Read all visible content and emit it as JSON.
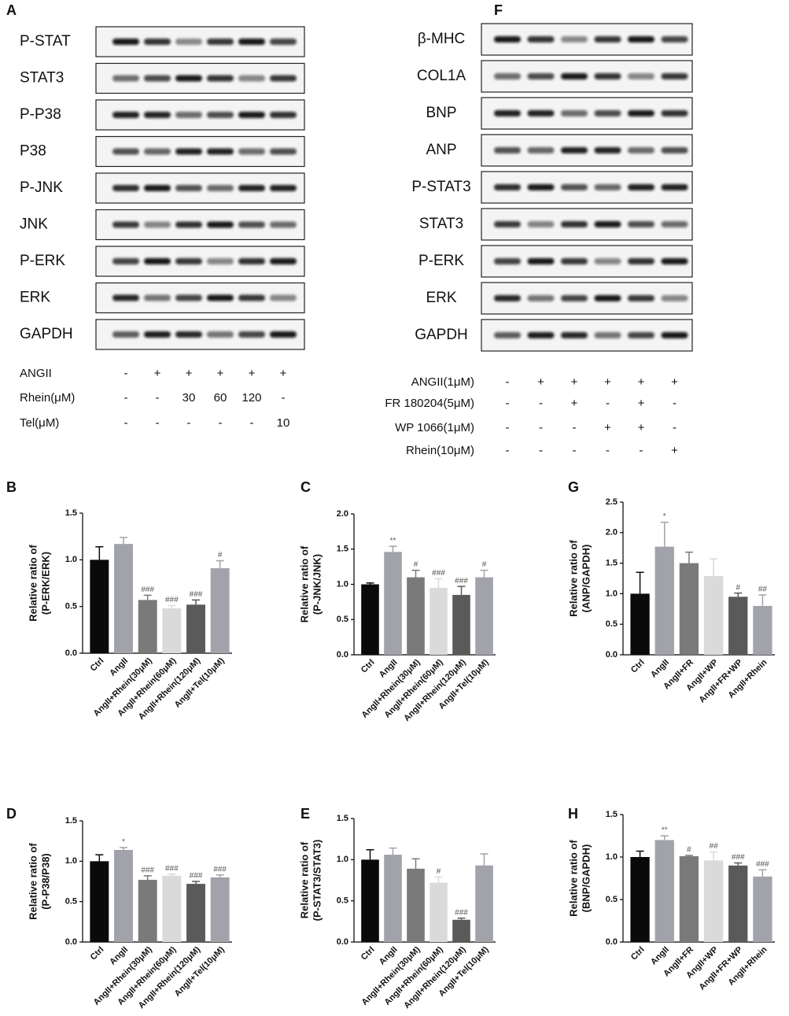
{
  "blots": [
    {
      "panel": "A",
      "rows": [
        "P-STAT",
        "STAT3",
        "P-P38",
        "P38",
        "P-JNK",
        "JNK",
        "P-ERK",
        "ERK",
        "GAPDH"
      ],
      "conditions": [
        {
          "label": "ANGII",
          "marks": [
            "-",
            "+",
            "+",
            "+",
            "+",
            "+"
          ]
        },
        {
          "label": "Rhein(μM)",
          "marks": [
            "-",
            "-",
            "30",
            "60",
            "120",
            "-"
          ]
        },
        {
          "label": "Tel(μM)",
          "marks": [
            "-",
            "-",
            "-",
            "-",
            "-",
            "10"
          ]
        }
      ]
    },
    {
      "panel": "F",
      "rows": [
        "β-MHC",
        "COL1A",
        "BNP",
        "ANP",
        "P-STAT3",
        "STAT3",
        "P-ERK",
        "ERK",
        "GAPDH"
      ],
      "conditions": [
        {
          "label": "ANGII(1μM)",
          "marks": [
            "-",
            "+",
            "+",
            "+",
            "+",
            "+"
          ]
        },
        {
          "label": "FR 180204(5μM)",
          "marks": [
            "-",
            "-",
            "+",
            "-",
            "+",
            "-"
          ]
        },
        {
          "label": "WP 1066(1μM)",
          "marks": [
            "-",
            "-",
            "-",
            "+",
            "+",
            "-"
          ]
        },
        {
          "label": "Rhein(10μM)",
          "marks": [
            "-",
            "-",
            "-",
            "-",
            "-",
            "+"
          ]
        }
      ]
    }
  ],
  "chart_data": [
    {
      "type": "bar",
      "panel": "B",
      "ylabel": [
        "Relative ratio of",
        "(P-ERK/ERK)"
      ],
      "categories": [
        "Ctrl",
        "AngII",
        "AngII+Rhein(30μM)",
        "AngII+Rhein(60μM)",
        "AngII+Rhein(120μM)",
        "AngII+Tel(10μM)"
      ],
      "values": [
        1.0,
        1.17,
        0.57,
        0.48,
        0.52,
        0.91
      ],
      "errors": [
        0.14,
        0.07,
        0.05,
        0.03,
        0.05,
        0.08
      ],
      "annotations": [
        null,
        null,
        "###",
        "###",
        "###",
        "#"
      ],
      "colors": [
        "#0a0a0a",
        "#a2a2aa",
        "#7a7a7a",
        "#dadada",
        "#5a5a5a",
        "#a2a2aa"
      ],
      "ylim": [
        0,
        1.5
      ],
      "yticks": [
        {
          "value": 0,
          "label": "0.0"
        },
        {
          "value": 0.5,
          "label": "0.5"
        },
        {
          "value": 1,
          "label": "1.0"
        },
        {
          "value": 1.5,
          "label": "1.5"
        }
      ]
    },
    {
      "type": "bar",
      "panel": "C",
      "ylabel": [
        "Relative ratio of",
        "(P-JNK/JNK)"
      ],
      "categories": [
        "Ctrl",
        "AngII",
        "AngII+Rhein(30μM)",
        "AngII+Rhein(60μM)",
        "AngII+Rhein(120μM)",
        "AngII+Tel(10μM)"
      ],
      "values": [
        1.0,
        1.46,
        1.1,
        0.95,
        0.85,
        1.1
      ],
      "errors": [
        0.02,
        0.08,
        0.1,
        0.13,
        0.12,
        0.1
      ],
      "annotations": [
        null,
        "**",
        "#",
        "###",
        "###",
        "#"
      ],
      "colors": [
        "#0a0a0a",
        "#a2a2aa",
        "#7a7a7a",
        "#dadada",
        "#5a5a5a",
        "#a2a2aa"
      ],
      "ylim": [
        0,
        2
      ],
      "yticks": [
        {
          "value": 0,
          "label": "0.0"
        },
        {
          "value": 0.5,
          "label": "0.5"
        },
        {
          "value": 1,
          "label": "1.0"
        },
        {
          "value": 1.5,
          "label": "1.5"
        },
        {
          "value": 2,
          "label": "2.0"
        }
      ]
    },
    {
      "type": "bar",
      "panel": "G",
      "ylabel": [
        "Relative ratio of",
        "(ANP/GAPDH)"
      ],
      "categories": [
        "Ctrl",
        "AngII",
        "AngII+FR",
        "AngII+WP",
        "AngII+FR+WP",
        "AngII+Rhein"
      ],
      "values": [
        1.0,
        1.77,
        1.5,
        1.29,
        0.95,
        0.8
      ],
      "errors": [
        0.35,
        0.4,
        0.18,
        0.28,
        0.06,
        0.18
      ],
      "annotations": [
        null,
        "*",
        null,
        null,
        "#",
        "##"
      ],
      "colors": [
        "#0a0a0a",
        "#a2a2aa",
        "#7a7a7a",
        "#dadada",
        "#5a5a5a",
        "#a2a2aa"
      ],
      "ylim": [
        0,
        2.5
      ],
      "yticks": [
        {
          "value": 0,
          "label": "0.0"
        },
        {
          "value": 0.5,
          "label": "0.5"
        },
        {
          "value": 1,
          "label": "1.0"
        },
        {
          "value": 1.5,
          "label": "1.5"
        },
        {
          "value": 2,
          "label": "2.0"
        },
        {
          "value": 2.5,
          "label": "2.5"
        }
      ]
    },
    {
      "type": "bar",
      "panel": "D",
      "ylabel": [
        "Relative ratio of",
        "(P-P38/P38)"
      ],
      "categories": [
        "Ctrl",
        "AngII",
        "AngII+Rhein(30μM)",
        "AngII+Rhein(60μM)",
        "AngII+Rhein(120μM)",
        "AngII+Tel(10μM)"
      ],
      "values": [
        1.0,
        1.14,
        0.77,
        0.82,
        0.72,
        0.8
      ],
      "errors": [
        0.08,
        0.03,
        0.05,
        0.02,
        0.03,
        0.03
      ],
      "annotations": [
        null,
        "*",
        "###",
        "###",
        "###",
        "###"
      ],
      "colors": [
        "#0a0a0a",
        "#a2a2aa",
        "#7a7a7a",
        "#dadada",
        "#5a5a5a",
        "#a2a2aa"
      ],
      "ylim": [
        0,
        1.5
      ],
      "yticks": [
        {
          "value": 0,
          "label": "0.0"
        },
        {
          "value": 0.5,
          "label": "0.5"
        },
        {
          "value": 1,
          "label": "1.0"
        },
        {
          "value": 1.5,
          "label": "1.5"
        }
      ]
    },
    {
      "type": "bar",
      "panel": "E",
      "ylabel": [
        "Relative ratio of",
        "(P-STAT3/STAT3)"
      ],
      "categories": [
        "Ctrl",
        "AngII",
        "AngII+Rhein(30μM)",
        "AngII+Rhein(60μM)",
        "AngII+Rhein(120μM)",
        "AngII+Tel(10μM)"
      ],
      "values": [
        1.0,
        1.06,
        0.89,
        0.72,
        0.27,
        0.93
      ],
      "errors": [
        0.12,
        0.08,
        0.12,
        0.07,
        0.02,
        0.14
      ],
      "annotations": [
        null,
        null,
        null,
        "#",
        "###",
        null
      ],
      "colors": [
        "#0a0a0a",
        "#a2a2aa",
        "#7a7a7a",
        "#dadada",
        "#5a5a5a",
        "#a2a2aa"
      ],
      "ylim": [
        0,
        1.5
      ],
      "yticks": [
        {
          "value": 0,
          "label": "0.0"
        },
        {
          "value": 0.5,
          "label": "0.5"
        },
        {
          "value": 1,
          "label": "1.0"
        },
        {
          "value": 1.5,
          "label": "1.5"
        }
      ]
    },
    {
      "type": "bar",
      "panel": "H",
      "ylabel": [
        "Relative ratio of",
        "(BNP/GAPDH)"
      ],
      "categories": [
        "Ctrl",
        "AngII",
        "AngII+FR",
        "AngII+WP",
        "AngII+FR+WP",
        "AngII+Rhein"
      ],
      "values": [
        1.0,
        1.2,
        1.01,
        0.96,
        0.9,
        0.77
      ],
      "errors": [
        0.07,
        0.05,
        0.01,
        0.1,
        0.03,
        0.08
      ],
      "annotations": [
        null,
        "**",
        "#",
        "##",
        "###",
        "###"
      ],
      "colors": [
        "#0a0a0a",
        "#a2a2aa",
        "#7a7a7a",
        "#dadada",
        "#5a5a5a",
        "#a2a2aa"
      ],
      "ylim": [
        0,
        1.5
      ],
      "yticks": [
        {
          "value": 0,
          "label": "0.0"
        },
        {
          "value": 0.5,
          "label": "0.5"
        },
        {
          "value": 1,
          "label": "1.0"
        },
        {
          "value": 1.5,
          "label": "1.5"
        }
      ]
    }
  ]
}
